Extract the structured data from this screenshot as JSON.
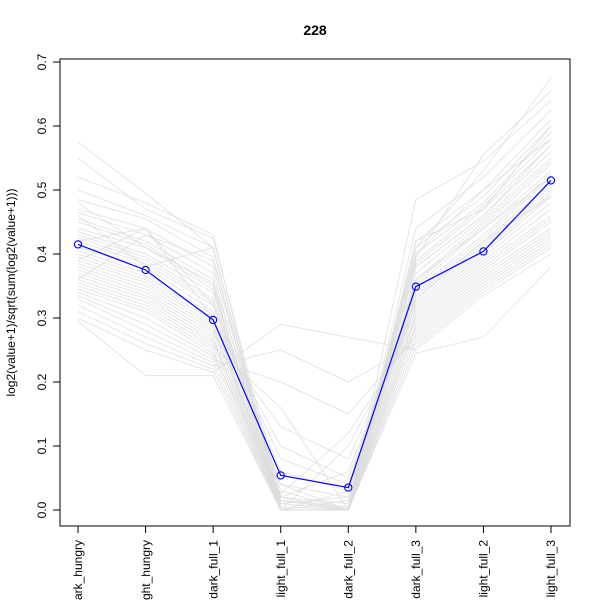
{
  "chart_data": {
    "type": "line",
    "title": "228",
    "xlabel": "",
    "ylabel": "log2(value+1)/sqrt(sum(log2(value+1)))",
    "categories": [
      "dark_hungry",
      "light_hungry",
      "dark_full_1",
      "light_full_1",
      "dark_full_2",
      "dark_full_3",
      "light_full_2",
      "light_full_3"
    ],
    "tick_labels_x": [
      "ark_hungry",
      "ght_hungry",
      "dark_full_1",
      "light_full_1",
      "dark_full_2",
      "dark_full_3",
      "light_full_2",
      "light_full_3"
    ],
    "ylim": [
      0,
      0.7
    ],
    "yticks": [
      0.0,
      0.1,
      0.2,
      0.3,
      0.4,
      0.5,
      0.6,
      0.7
    ],
    "ytick_labels": [
      "0.0",
      "0.1",
      "0.2",
      "0.3",
      "0.4",
      "0.5",
      "0.6",
      "0.7"
    ],
    "grid": false,
    "highlight_color": "#0000ff",
    "background_color": "#dcdcdc",
    "highlight": {
      "values": [
        0.415,
        0.375,
        0.297,
        0.054,
        0.035,
        0.349,
        0.404,
        0.515
      ]
    },
    "background_series": [
      [
        0.575,
        0.495,
        0.41,
        0.005,
        0.0,
        0.41,
        0.53,
        0.675
      ],
      [
        0.55,
        0.47,
        0.425,
        0.02,
        0.01,
        0.395,
        0.555,
        0.655
      ],
      [
        0.52,
        0.48,
        0.43,
        0.0,
        0.0,
        0.485,
        0.545,
        0.64
      ],
      [
        0.5,
        0.46,
        0.41,
        0.01,
        0.0,
        0.44,
        0.52,
        0.625
      ],
      [
        0.485,
        0.455,
        0.395,
        0.0,
        0.0,
        0.42,
        0.5,
        0.61
      ],
      [
        0.47,
        0.44,
        0.38,
        0.02,
        0.0,
        0.41,
        0.49,
        0.6
      ],
      [
        0.465,
        0.43,
        0.37,
        0.0,
        0.015,
        0.4,
        0.48,
        0.59
      ],
      [
        0.455,
        0.42,
        0.36,
        0.03,
        0.0,
        0.39,
        0.475,
        0.58
      ],
      [
        0.45,
        0.415,
        0.35,
        0.0,
        0.0,
        0.385,
        0.47,
        0.57
      ],
      [
        0.44,
        0.41,
        0.345,
        0.015,
        0.005,
        0.38,
        0.46,
        0.56
      ],
      [
        0.435,
        0.4,
        0.34,
        0.0,
        0.0,
        0.37,
        0.455,
        0.55
      ],
      [
        0.43,
        0.395,
        0.33,
        0.04,
        0.02,
        0.36,
        0.45,
        0.545
      ],
      [
        0.425,
        0.39,
        0.325,
        0.0,
        0.0,
        0.355,
        0.445,
        0.54
      ],
      [
        0.42,
        0.385,
        0.32,
        0.06,
        0.03,
        0.35,
        0.44,
        0.53
      ],
      [
        0.41,
        0.38,
        0.31,
        0.0,
        0.0,
        0.345,
        0.43,
        0.525
      ],
      [
        0.405,
        0.37,
        0.305,
        0.08,
        0.04,
        0.34,
        0.425,
        0.52
      ],
      [
        0.4,
        0.365,
        0.3,
        0.0,
        0.0,
        0.335,
        0.42,
        0.51
      ],
      [
        0.395,
        0.36,
        0.295,
        0.1,
        0.05,
        0.33,
        0.415,
        0.505
      ],
      [
        0.39,
        0.355,
        0.29,
        0.0,
        0.0,
        0.325,
        0.41,
        0.5
      ],
      [
        0.385,
        0.35,
        0.285,
        0.02,
        0.06,
        0.32,
        0.405,
        0.495
      ],
      [
        0.38,
        0.345,
        0.28,
        0.0,
        0.0,
        0.315,
        0.4,
        0.49
      ],
      [
        0.375,
        0.34,
        0.275,
        0.13,
        0.08,
        0.31,
        0.395,
        0.48
      ],
      [
        0.37,
        0.335,
        0.27,
        0.0,
        0.0,
        0.305,
        0.39,
        0.47
      ],
      [
        0.365,
        0.33,
        0.265,
        0.015,
        0.0,
        0.3,
        0.385,
        0.46
      ],
      [
        0.36,
        0.325,
        0.26,
        0.0,
        0.1,
        0.295,
        0.38,
        0.455
      ],
      [
        0.355,
        0.32,
        0.255,
        0.16,
        0.0,
        0.29,
        0.375,
        0.45
      ],
      [
        0.35,
        0.315,
        0.25,
        0.0,
        0.0,
        0.285,
        0.37,
        0.44
      ],
      [
        0.345,
        0.31,
        0.245,
        0.025,
        0.12,
        0.28,
        0.365,
        0.435
      ],
      [
        0.34,
        0.3,
        0.24,
        0.0,
        0.0,
        0.275,
        0.36,
        0.43
      ],
      [
        0.335,
        0.29,
        0.235,
        0.2,
        0.15,
        0.27,
        0.355,
        0.425
      ],
      [
        0.33,
        0.28,
        0.23,
        0.0,
        0.0,
        0.265,
        0.35,
        0.42
      ],
      [
        0.32,
        0.27,
        0.225,
        0.25,
        0.2,
        0.26,
        0.345,
        0.415
      ],
      [
        0.31,
        0.26,
        0.22,
        0.0,
        0.0,
        0.255,
        0.34,
        0.41
      ],
      [
        0.3,
        0.25,
        0.215,
        0.29,
        0.27,
        0.25,
        0.335,
        0.4
      ],
      [
        0.295,
        0.21,
        0.21,
        0.0,
        0.0,
        0.245,
        0.27,
        0.38
      ],
      [
        0.42,
        0.44,
        0.3,
        0.015,
        0.0,
        0.4,
        0.5,
        0.58
      ],
      [
        0.46,
        0.38,
        0.41,
        0.0,
        0.03,
        0.33,
        0.42,
        0.49
      ],
      [
        0.39,
        0.44,
        0.32,
        0.04,
        0.0,
        0.42,
        0.47,
        0.6
      ],
      [
        0.48,
        0.41,
        0.355,
        0.0,
        0.0,
        0.36,
        0.44,
        0.52
      ],
      [
        0.36,
        0.43,
        0.39,
        0.01,
        0.02,
        0.38,
        0.46,
        0.57
      ]
    ]
  }
}
